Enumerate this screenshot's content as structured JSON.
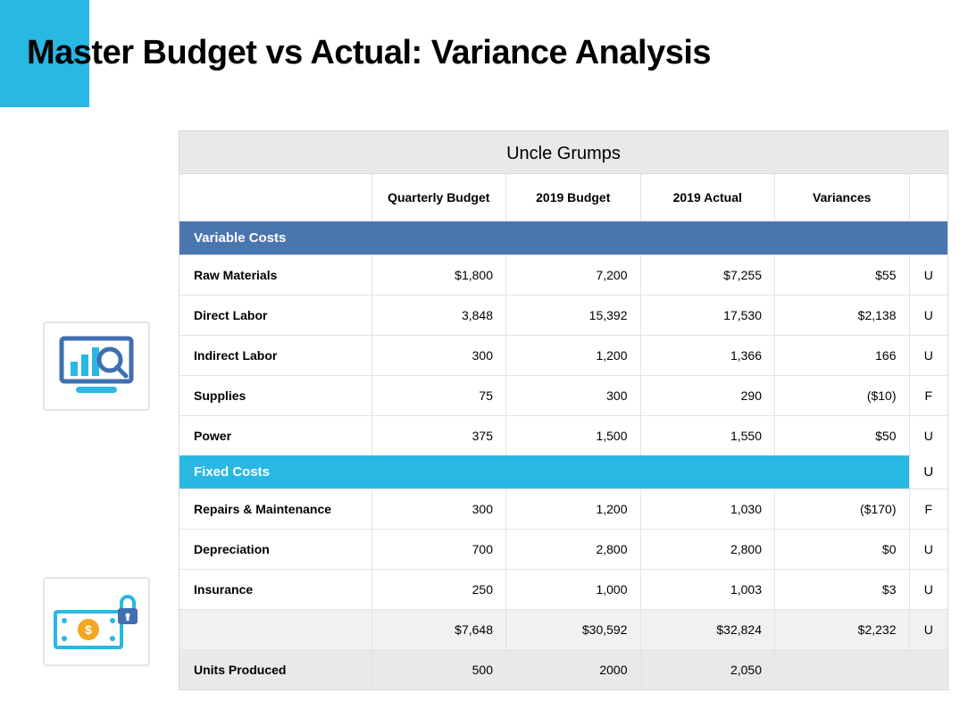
{
  "title": "Master Budget vs Actual: Variance Analysis",
  "accent_color": "#29b8e4",
  "table": {
    "title": "Uncle Grumps",
    "columns": [
      "",
      "Quarterly Budget",
      "2019 Budget",
      "2019 Actual",
      "Variances",
      ""
    ],
    "section_variable": {
      "label": "Variable Costs",
      "bg": "#4a76b0"
    },
    "section_fixed": {
      "label": "Fixed Costs",
      "bg": "#29b8e4",
      "flag": "U"
    },
    "rows_variable": [
      {
        "label": "Raw Materials",
        "q": "$1,800",
        "b": "7,200",
        "a": "$7,255",
        "v": "$55",
        "f": "U"
      },
      {
        "label": "Direct Labor",
        "q": "3,848",
        "b": "15,392",
        "a": "17,530",
        "v": "$2,138",
        "f": "U"
      },
      {
        "label": "Indirect Labor",
        "q": "300",
        "b": "1,200",
        "a": "1,366",
        "v": "166",
        "f": "U"
      },
      {
        "label": "Supplies",
        "q": "75",
        "b": "300",
        "a": "290",
        "v": "($10)",
        "f": "F"
      },
      {
        "label": "Power",
        "q": "375",
        "b": "1,500",
        "a": "1,550",
        "v": "$50",
        "f": "U"
      }
    ],
    "rows_fixed": [
      {
        "label": "Repairs & Maintenance",
        "q": "300",
        "b": "1,200",
        "a": "1,030",
        "v": "($170)",
        "f": "F"
      },
      {
        "label": "Depreciation",
        "q": "700",
        "b": "2,800",
        "a": "2,800",
        "v": "$0",
        "f": "U"
      },
      {
        "label": "Insurance",
        "q": "250",
        "b": "1,000",
        "a": "1,003",
        "v": "$3",
        "f": "U"
      }
    ],
    "total": {
      "label": "",
      "q": "$7,648",
      "b": "$30,592",
      "a": "$32,824",
      "v": "$2,232",
      "f": "U"
    },
    "units": {
      "label": "Units Produced",
      "q": "500",
      "b": "2000",
      "a": "2,050",
      "v": "",
      "f": ""
    }
  },
  "icons": {
    "chart_monitor": "analytics-monitor-icon",
    "money_lock": "money-lock-icon"
  },
  "type": "table",
  "background_color": "#ffffff",
  "border_color": "#e4e4e4",
  "header_bg": "#e9e9e9",
  "font_family": "Arial",
  "title_fontsize": 38,
  "body_fontsize": 14
}
